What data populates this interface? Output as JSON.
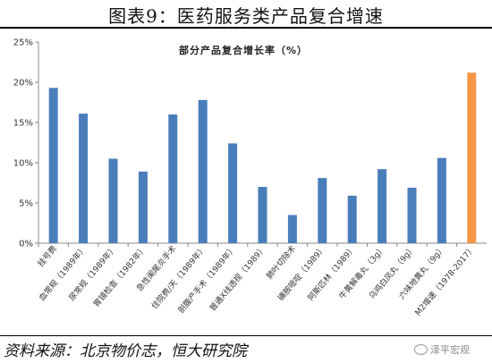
{
  "header": {
    "title": "图表9：医药服务类产品复合增速"
  },
  "footer": {
    "source": "资料来源：北京物价志，恒大研究院",
    "watermark": "泽平宏观"
  },
  "colors": {
    "bar": "#4a7ebb",
    "highlight": "#f79646",
    "axis": "#888888"
  },
  "chart_data": {
    "type": "bar",
    "title": "部分产品复合增长率（%）",
    "xlabel": "",
    "ylabel": "",
    "ylim": [
      0,
      25
    ],
    "yticks": [
      0,
      5,
      10,
      15,
      20,
      25
    ],
    "ytick_labels": [
      "0%",
      "5%",
      "10%",
      "15%",
      "20%",
      "25%"
    ],
    "grid": false,
    "categories": [
      "挂号费",
      "血常规（1989年）",
      "尿常规（1989年）",
      "胃镜检查（1982年）",
      "急性阑尾炎手术",
      "住院费/天（1989年）",
      "剖腹产手术（1989年）",
      "普通X线透视（1989）",
      "肺叶切除术",
      "磺胺嘧啶（1989）",
      "阿斯匹林（1989）",
      "牛黄解毒丸（3g）",
      "乌鸡白凤丸（9g）",
      "六味地黄丸（9g）",
      "M2增速（1978-2017）"
    ],
    "values": [
      19.3,
      16.1,
      10.5,
      8.9,
      16.0,
      17.8,
      12.4,
      7.0,
      3.5,
      8.1,
      5.9,
      9.2,
      6.9,
      10.6,
      21.2
    ],
    "highlight_index": 14
  }
}
